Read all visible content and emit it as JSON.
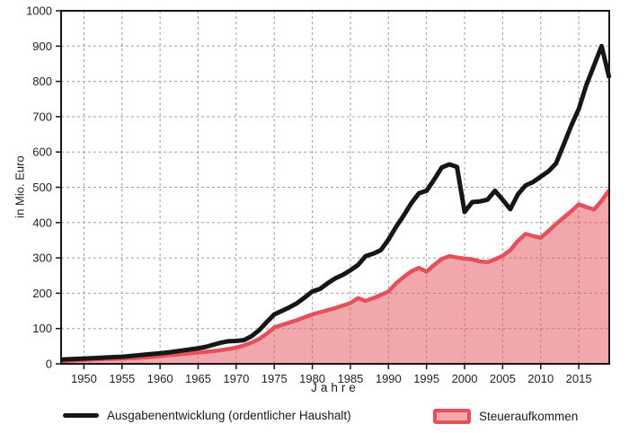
{
  "chart_data": {
    "type": "area",
    "title": "",
    "xlabel": "Jahre",
    "ylabel": "in Mio. Euro",
    "xlim": [
      1947,
      2019
    ],
    "ylim": [
      0,
      1000
    ],
    "xticks": [
      1950,
      1955,
      1960,
      1965,
      1970,
      1975,
      1980,
      1985,
      1990,
      1995,
      2000,
      2005,
      2010,
      2015
    ],
    "yticks": [
      0,
      100,
      200,
      300,
      400,
      500,
      600,
      700,
      800,
      900,
      1000
    ],
    "grid": true,
    "legend_position": "bottom",
    "x": [
      1947,
      1948,
      1949,
      1950,
      1951,
      1952,
      1953,
      1954,
      1955,
      1956,
      1957,
      1958,
      1959,
      1960,
      1961,
      1962,
      1963,
      1964,
      1965,
      1966,
      1967,
      1968,
      1969,
      1970,
      1971,
      1972,
      1973,
      1974,
      1975,
      1976,
      1977,
      1978,
      1979,
      1980,
      1981,
      1982,
      1983,
      1984,
      1985,
      1986,
      1987,
      1988,
      1989,
      1990,
      1991,
      1992,
      1993,
      1994,
      1995,
      1996,
      1997,
      1998,
      1999,
      2000,
      2001,
      2002,
      2003,
      2004,
      2005,
      2006,
      2007,
      2008,
      2009,
      2010,
      2011,
      2012,
      2013,
      2014,
      2015,
      2016,
      2017,
      2018,
      2019
    ],
    "series": [
      {
        "name": "Ausgabenentwicklung (ordentlicher Haushalt)",
        "style": "line",
        "color": "#161616",
        "values": [
          12,
          13,
          14,
          15,
          16,
          17,
          18,
          19,
          20,
          22,
          24,
          26,
          28,
          30,
          32,
          35,
          38,
          41,
          44,
          48,
          54,
          60,
          64,
          65,
          67,
          78,
          95,
          118,
          140,
          150,
          160,
          172,
          188,
          205,
          212,
          228,
          242,
          252,
          265,
          280,
          305,
          312,
          322,
          352,
          388,
          420,
          455,
          483,
          490,
          522,
          556,
          565,
          558,
          430,
          458,
          460,
          465,
          490,
          465,
          438,
          480,
          505,
          515,
          530,
          545,
          567,
          620,
          674,
          722,
          790,
          845,
          900,
          810
        ]
      },
      {
        "name": "Steueraufkommen",
        "style": "area",
        "color": "#e6505a",
        "fill_color": "#f3a8ac",
        "fill_opacity": 0.5,
        "values": [
          8,
          9,
          10,
          11,
          12,
          13,
          14,
          14,
          15,
          16,
          17,
          18,
          20,
          22,
          24,
          26,
          28,
          30,
          32,
          34,
          36,
          39,
          42,
          46,
          52,
          60,
          70,
          85,
          103,
          110,
          117,
          124,
          132,
          140,
          146,
          152,
          158,
          165,
          172,
          186,
          178,
          186,
          195,
          205,
          228,
          246,
          262,
          272,
          261,
          280,
          297,
          305,
          301,
          298,
          296,
          290,
          288,
          296,
          306,
          322,
          348,
          368,
          362,
          357,
          376,
          396,
          414,
          432,
          452,
          444,
          437,
          462,
          492
        ]
      }
    ],
    "grid_color": "#a0a0a0",
    "axis_color": "#161616"
  },
  "legend": {
    "expenses_label": "Ausgabenentwicklung (ordentlicher Haushalt)",
    "tax_label": "Steueraufkommen"
  }
}
